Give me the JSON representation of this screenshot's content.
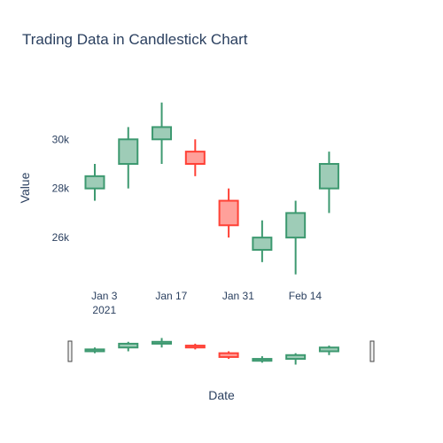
{
  "chart_data": {
    "type": "candlestick",
    "title": "Trading Data in Candlestick Chart",
    "xlabel": "Date",
    "ylabel": "Value",
    "y_ticks": [
      26000,
      28000,
      30000
    ],
    "y_tick_labels": [
      "26k",
      "28k",
      "30k"
    ],
    "ylim": [
      24200,
      32500
    ],
    "x_ticks": [
      {
        "date": "2021-01-03",
        "label": "Jan 3",
        "sublabel": "2021"
      },
      {
        "date": "2021-01-17",
        "label": "Jan 17",
        "sublabel": ""
      },
      {
        "date": "2021-01-31",
        "label": "Jan 31",
        "sublabel": ""
      },
      {
        "date": "2021-02-14",
        "label": "Feb 14",
        "sublabel": ""
      }
    ],
    "xlim": [
      "2020-12-27",
      "2021-02-28"
    ],
    "increasing_color": "#3D9970",
    "decreasing_color": "#FF4136",
    "grid": false,
    "rangeslider": true,
    "candles": [
      {
        "date": "2021-01-01",
        "open": 28000,
        "high": 29000,
        "low": 27500,
        "close": 28500
      },
      {
        "date": "2021-01-08",
        "open": 29000,
        "high": 30500,
        "low": 28000,
        "close": 30000
      },
      {
        "date": "2021-01-15",
        "open": 30000,
        "high": 31500,
        "low": 29000,
        "close": 30500
      },
      {
        "date": "2021-01-22",
        "open": 29500,
        "high": 30000,
        "low": 28500,
        "close": 29000
      },
      {
        "date": "2021-01-29",
        "open": 27500,
        "high": 28000,
        "low": 26000,
        "close": 26500
      },
      {
        "date": "2021-02-05",
        "open": 25500,
        "high": 26700,
        "low": 25000,
        "close": 26000
      },
      {
        "date": "2021-02-12",
        "open": 26000,
        "high": 27500,
        "low": 24500,
        "close": 27000
      },
      {
        "date": "2021-02-19",
        "open": 28000,
        "high": 29500,
        "low": 27000,
        "close": 29000
      }
    ]
  }
}
